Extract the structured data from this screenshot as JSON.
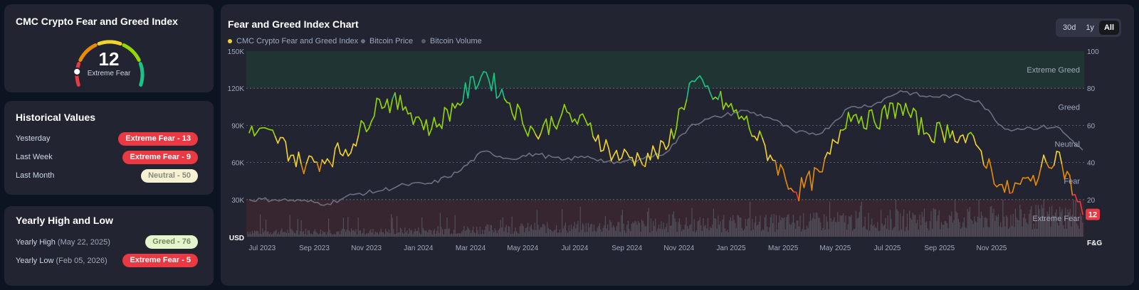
{
  "gauge": {
    "title": "CMC Crypto Fear and Greed Index",
    "value": "12",
    "label": "Extreme Fear"
  },
  "historical": {
    "title": "Historical Values",
    "rows": [
      {
        "label": "Yesterday",
        "badge": "Extreme Fear - 13",
        "status": "fear"
      },
      {
        "label": "Last Week",
        "badge": "Extreme Fear - 9",
        "status": "fear"
      },
      {
        "label": "Last Month",
        "badge": "Neutral - 50",
        "status": "neutral"
      }
    ]
  },
  "yearly": {
    "title": "Yearly High and Low",
    "high": {
      "label": "Yearly High",
      "date": "(May 22, 2025)",
      "badge": "Greed - 76"
    },
    "low": {
      "label": "Yearly Low",
      "date": "(Feb 05, 2026)",
      "badge": "Extreme Fear - 5"
    }
  },
  "chart": {
    "title": "Fear and Greed Index Chart",
    "ranges": [
      "30d",
      "1y",
      "All"
    ],
    "active_range": "All",
    "current_value": "12",
    "left_unit": "USD",
    "right_unit": "F&G"
  },
  "colors": {
    "extreme_fear": "#ea3943",
    "fear": "#ea8c00",
    "neutral": "#f3d42f",
    "greed": "#93d900",
    "extreme_greed": "#16c784",
    "price": "#6b6f7e",
    "volume": "#5a5c68"
  },
  "chart_data": {
    "type": "line",
    "title": "Fear and Greed Index Chart",
    "x_ticks": [
      "Jul 2023",
      "Sep 2023",
      "Nov 2023",
      "Jan 2024",
      "Mar 2024",
      "May 2024",
      "Jul 2024",
      "Sep 2024",
      "Nov 2024",
      "Jan 2025",
      "Mar 2025",
      "May 2025",
      "Jul 2025",
      "Sep 2025",
      "Nov 2025"
    ],
    "y_left_ticks": [
      "150K",
      "120K",
      "90K",
      "60K",
      "30K"
    ],
    "y_left_range": [
      0,
      150000
    ],
    "y_right_ticks": [
      "100",
      "80",
      "60",
      "40",
      "20"
    ],
    "y_right_range": [
      0,
      100
    ],
    "zones": [
      "Extreme Greed",
      "Greed",
      "Neutral",
      "Fear",
      "Extreme Fear"
    ],
    "grid": true,
    "series": [
      {
        "name": "CMC Crypto Fear and Greed Index",
        "axis": "right",
        "dates": [
          "Jun 2023",
          "Jul 2023",
          "Aug 2023",
          "Sep 2023",
          "Oct 2023",
          "Nov 2023",
          "Dec 2023",
          "Jan 2024",
          "Feb 2024",
          "Mar 2024",
          "Apr 2024",
          "May 2024",
          "Jun 2024",
          "Jul 2024",
          "Aug 2024",
          "Sep 2024",
          "Oct 2024",
          "Nov 2024",
          "Dec 2024",
          "Jan 2025",
          "Feb 2025",
          "Mar 2025",
          "Apr 2025",
          "May 2025",
          "Jun 2025",
          "Jul 2025",
          "Aug 2025",
          "Sep 2025",
          "Oct 2025",
          "Nov 2025",
          "Dec 2025",
          "Jan 2026",
          "Feb 2026"
        ],
        "values": [
          56,
          54,
          39,
          42,
          50,
          74,
          70,
          58,
          72,
          89,
          72,
          55,
          66,
          60,
          44,
          42,
          47,
          84,
          74,
          63,
          44,
          24,
          35,
          67,
          62,
          71,
          56,
          57,
          48,
          24,
          30,
          46,
          12
        ]
      },
      {
        "name": "Bitcoin Price",
        "axis": "left",
        "dates": [
          "Jun 2023",
          "Jul 2023",
          "Aug 2023",
          "Sep 2023",
          "Oct 2023",
          "Nov 2023",
          "Dec 2023",
          "Jan 2024",
          "Feb 2024",
          "Mar 2024",
          "Apr 2024",
          "May 2024",
          "Jun 2024",
          "Jul 2024",
          "Aug 2024",
          "Sep 2024",
          "Oct 2024",
          "Nov 2024",
          "Dec 2024",
          "Jan 2025",
          "Feb 2025",
          "Mar 2025",
          "Apr 2025",
          "May 2025",
          "Jun 2025",
          "Jul 2025",
          "Aug 2025",
          "Sep 2025",
          "Oct 2025",
          "Nov 2025",
          "Dec 2025",
          "Jan 2026",
          "Feb 2026"
        ],
        "values": [
          30000,
          30000,
          29000,
          26500,
          34000,
          37000,
          42000,
          43000,
          52000,
          69000,
          63000,
          67000,
          62000,
          65000,
          59000,
          63000,
          68000,
          91000,
          97000,
          102000,
          96000,
          84000,
          84000,
          104000,
          107000,
          118000,
          113000,
          114000,
          110000,
          87000,
          88000,
          89000,
          70000
        ]
      },
      {
        "name": "Bitcoin Volume",
        "axis": "hidden",
        "values": []
      }
    ]
  }
}
